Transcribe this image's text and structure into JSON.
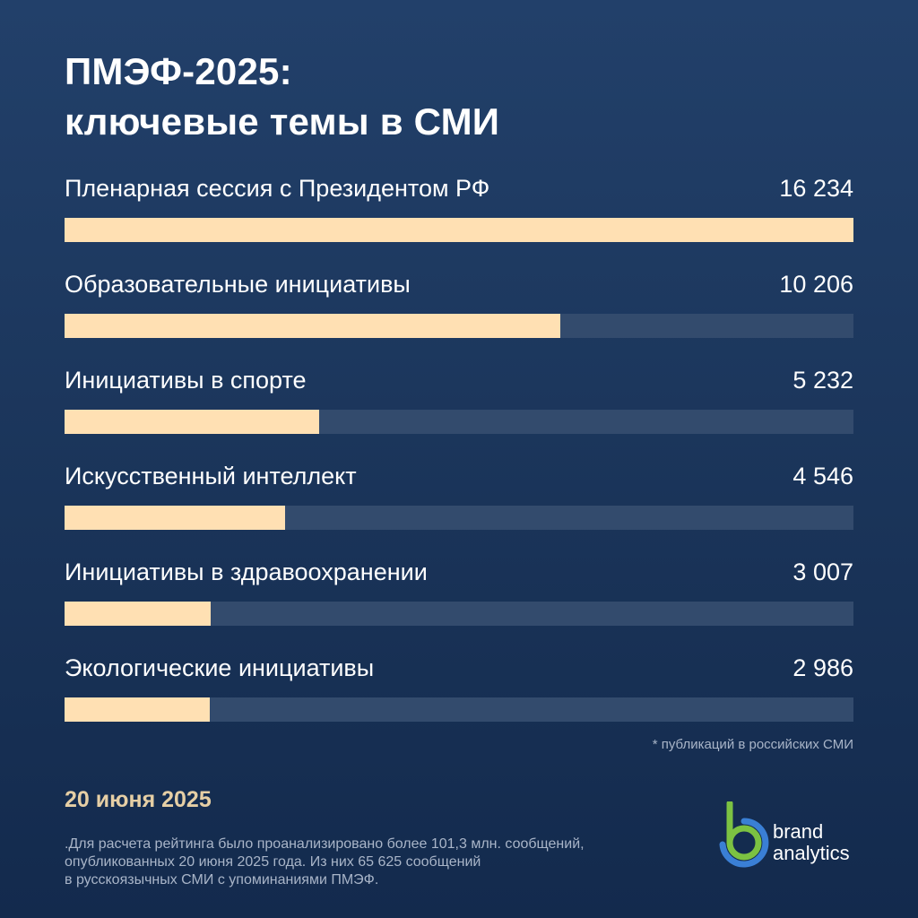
{
  "header": {
    "title_line1": "ПМЭФ-2025:",
    "title_line2": "ключевые темы в СМИ"
  },
  "chart_data": {
    "type": "bar",
    "orientation": "horizontal",
    "categories": [
      "Пленарная сессия с Президентом РФ",
      "Образовательные инициативы",
      "Инициативы в спорте",
      "Искусственный интеллект",
      "Инициативы в здравоохранении",
      "Экологические инициативы"
    ],
    "values": [
      16234,
      10206,
      5232,
      4546,
      3007,
      2986
    ],
    "value_labels": [
      "16 234",
      "10 206",
      "5 232",
      "4 546",
      "3 007",
      "2 986"
    ],
    "xlim": [
      0,
      16234
    ],
    "grid": false,
    "colors": {
      "bar": "#ffe0b3",
      "track": "#334b6d",
      "background": "#1a3459"
    }
  },
  "footnote": "* публикаций в российских СМИ",
  "date": "20 июня 2025",
  "note_lines": [
    ".Для расчета рейтинга было проанализировано более 101,3 млн. сообщений,",
    "опубликованных 20 июня 2025 года. Из них 65 625 сообщений",
    "в русскоязычных СМИ с упоминаниями ПМЭФ."
  ],
  "brand": {
    "line1": "brand",
    "line2": "analytics",
    "logo_icon": "brand-analytics-logo-icon",
    "colors": {
      "green": "#7cc242",
      "blue": "#3a7fd5"
    }
  }
}
